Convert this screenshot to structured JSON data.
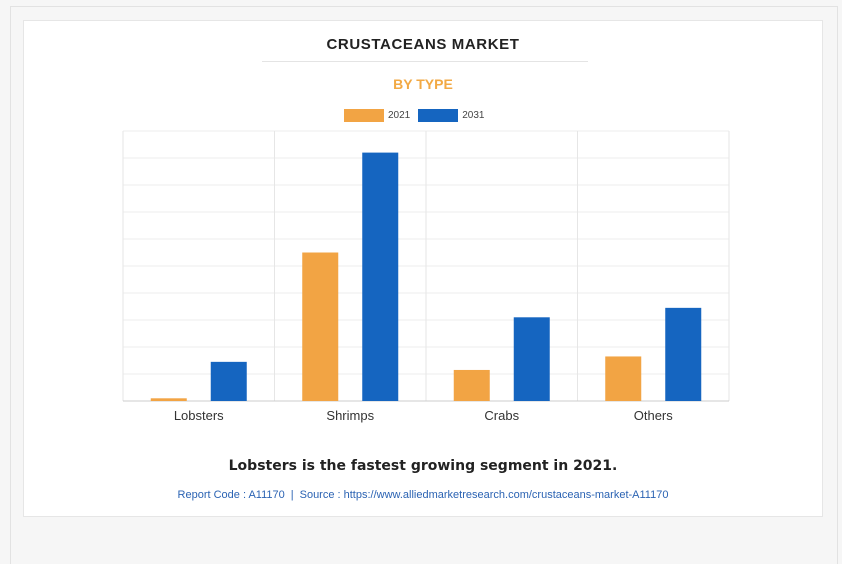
{
  "chart_data": {
    "type": "bar",
    "title": "CRUSTACEANS MARKET",
    "subtitle": "BY TYPE",
    "categories": [
      "Lobsters",
      "Shrimps",
      "Crabs",
      "Others"
    ],
    "series": [
      {
        "name": "2021",
        "color": "#f2a444",
        "values": [
          1,
          55,
          11.5,
          16.5
        ]
      },
      {
        "name": "2031",
        "color": "#1565c0",
        "values": [
          14.5,
          92,
          31,
          34.5
        ]
      }
    ],
    "ylim": [
      0,
      100
    ],
    "y_gridlines": 10,
    "grid": true,
    "legend": "top-center",
    "footnote": "Lobsters is the fastest growing segment in 2021."
  },
  "report": {
    "code": "Report Code : A11170",
    "separator": "|",
    "source": "Source : https://www.alliedmarketresearch.com/crustaceans-market-A11170"
  }
}
